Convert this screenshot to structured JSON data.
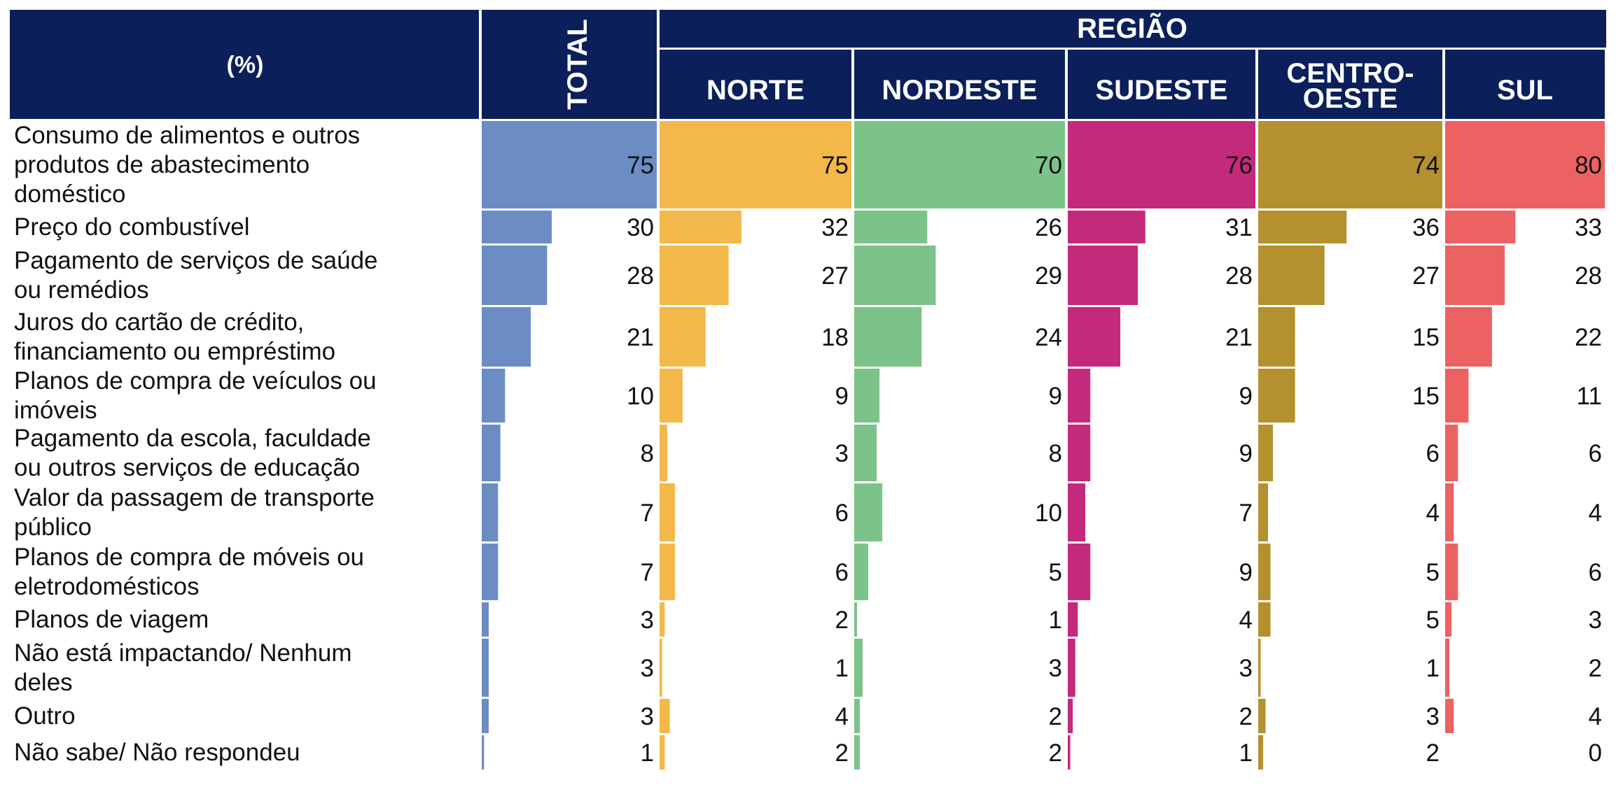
{
  "chart_data": {
    "type": "table",
    "title": "",
    "header": {
      "label_col": "(%)",
      "total": "TOTAL",
      "group": "REGIÃO"
    },
    "columns": [
      {
        "key": "total",
        "label": "TOTAL",
        "color": "#6b8dc4"
      },
      {
        "key": "norte",
        "label": "NORTE",
        "color": "#f3b84a"
      },
      {
        "key": "nordeste",
        "label": "NORDESTE",
        "color": "#7cc38a"
      },
      {
        "key": "sudeste",
        "label": "SUDESTE",
        "color": "#c42a7c"
      },
      {
        "key": "centro_oeste",
        "label": "CENTRO-\nOESTE",
        "color": "#b5902e"
      },
      {
        "key": "sul",
        "label": "SUL",
        "color": "#ec6262"
      }
    ],
    "header_color": "#0b1f5b",
    "value_range": [
      0,
      75
    ],
    "rows": [
      {
        "label": "Consumo de alimentos e outros\nprodutos de abastecimento\ndoméstico",
        "values": [
          75,
          75,
          70,
          76,
          74,
          80
        ]
      },
      {
        "label": "Preço do combustível",
        "values": [
          30,
          32,
          26,
          31,
          36,
          33
        ]
      },
      {
        "label": "Pagamento de serviços de saúde\nou remédios",
        "values": [
          28,
          27,
          29,
          28,
          27,
          28
        ]
      },
      {
        "label": "Juros do cartão de crédito,\nfinanciamento ou empréstimo",
        "values": [
          21,
          18,
          24,
          21,
          15,
          22
        ]
      },
      {
        "label": "Planos de compra de veículos ou\nimóveis",
        "values": [
          10,
          9,
          9,
          9,
          15,
          11
        ]
      },
      {
        "label": "Pagamento da escola, faculdade\nou outros serviços de educação",
        "values": [
          8,
          3,
          8,
          9,
          6,
          6
        ]
      },
      {
        "label": "Valor da passagem de transporte\npúblico",
        "values": [
          7,
          6,
          10,
          7,
          4,
          4
        ]
      },
      {
        "label": " Planos de compra de móveis ou\neletrodomésticos",
        "values": [
          7,
          6,
          5,
          9,
          5,
          6
        ]
      },
      {
        "label": "Planos de viagem",
        "values": [
          3,
          2,
          1,
          4,
          5,
          3
        ]
      },
      {
        "label": "Não está impactando/ Nenhum\ndeles",
        "values": [
          3,
          1,
          3,
          3,
          1,
          2
        ]
      },
      {
        "label": "Outro",
        "values": [
          3,
          4,
          2,
          2,
          3,
          4
        ]
      },
      {
        "label": "Não sabe/ Não respondeu",
        "values": [
          1,
          2,
          2,
          1,
          2,
          0
        ]
      }
    ]
  }
}
